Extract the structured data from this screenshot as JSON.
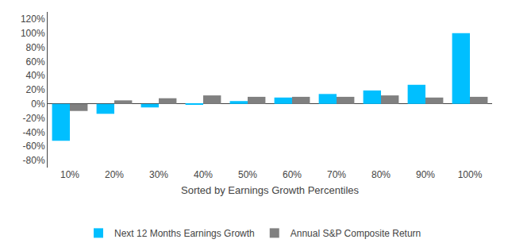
{
  "chart_data": {
    "type": "bar",
    "xlabel": "Sorted by Earnings Growth Percentiles",
    "categories": [
      "10%",
      "20%",
      "30%",
      "40%",
      "50%",
      "60%",
      "70%",
      "80%",
      "90%",
      "100%"
    ],
    "series": [
      {
        "name": "Next 12 Months Earnings Growth",
        "color": "#00BFFF",
        "values": [
          -0.52,
          -0.14,
          -0.05,
          -0.01,
          0.04,
          0.09,
          0.14,
          0.19,
          0.27,
          1.0
        ]
      },
      {
        "name": "Annual S&P Composite Return",
        "color": "#808080",
        "values": [
          -0.1,
          0.05,
          0.08,
          0.12,
          0.1,
          0.1,
          0.1,
          0.12,
          0.09,
          0.1
        ]
      }
    ],
    "ylim": [
      -0.9,
      1.3
    ],
    "yticks": [
      {
        "value": -0.8,
        "label": "-80%"
      },
      {
        "value": -0.6,
        "label": "-60%"
      },
      {
        "value": -0.4,
        "label": "-40%"
      },
      {
        "value": -0.2,
        "label": "-20%"
      },
      {
        "value": 0.0,
        "label": "0%"
      },
      {
        "value": 0.2,
        "label": "20%"
      },
      {
        "value": 0.4,
        "label": "40%"
      },
      {
        "value": 0.6,
        "label": "60%"
      },
      {
        "value": 0.8,
        "label": "80%"
      },
      {
        "value": 1.0,
        "label": "100%"
      },
      {
        "value": 1.2,
        "label": "120%"
      }
    ],
    "grid": false,
    "legend": "bottom"
  }
}
